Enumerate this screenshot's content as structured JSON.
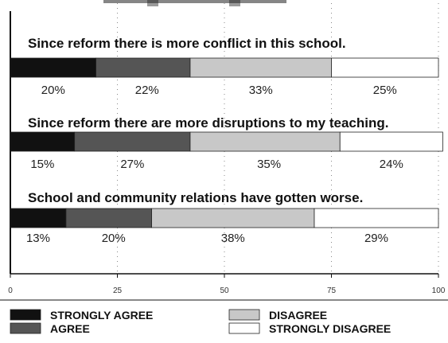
{
  "chart_data": {
    "type": "bar",
    "orientation": "horizontal",
    "stacked": true,
    "title": "",
    "xlabel": "",
    "ylabel": "",
    "xlim": [
      0,
      100
    ],
    "xticks": [
      0,
      25,
      50,
      75,
      100
    ],
    "grid": true,
    "legend_position": "bottom",
    "categories": [
      "Since reform there is more conflict in this school.",
      "Since reform there are more disruptions to my teaching.",
      "School and community relations have gotten worse."
    ],
    "series": [
      {
        "name": "STRONGLY AGREE",
        "values": [
          20,
          15,
          13
        ],
        "color": "#111111"
      },
      {
        "name": "AGREE",
        "values": [
          22,
          27,
          20
        ],
        "color": "#555555"
      },
      {
        "name": "DISAGREE",
        "values": [
          33,
          35,
          38
        ],
        "color": "#c8c8c8"
      },
      {
        "name": "STRONGLY DISAGREE",
        "values": [
          25,
          24,
          29
        ],
        "color": "#ffffff"
      }
    ],
    "value_labels": [
      [
        "20%",
        "22%",
        "33%",
        "25%"
      ],
      [
        "15%",
        "27%",
        "35%",
        "24%"
      ],
      [
        "13%",
        "20%",
        "38%",
        "29%"
      ]
    ]
  }
}
